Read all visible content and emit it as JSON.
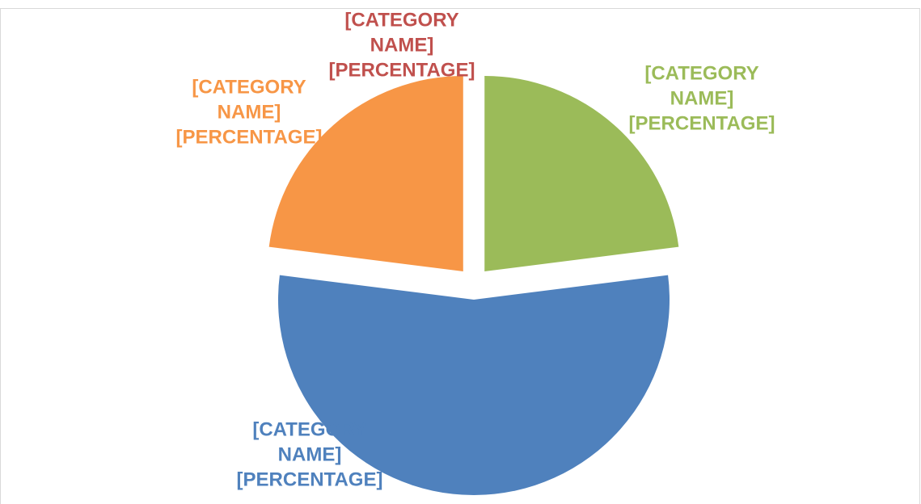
{
  "chart_data": {
    "type": "pie",
    "categories": [
      "[CATEGORY NAME]",
      "[CATEGORY NAME]",
      "[CATEGORY NAME]",
      "[CATEGORY NAME]"
    ],
    "values": [
      23,
      54,
      23,
      0
    ],
    "value_labels": [
      "[PERCENTAGE]",
      "[PERCENTAGE]",
      "[PERCENTAGE]",
      "[PERCENTAGE]"
    ],
    "colors": [
      "#9bbb59",
      "#4f81bd",
      "#f79646",
      "#c0504d"
    ],
    "exploded": true
  }
}
